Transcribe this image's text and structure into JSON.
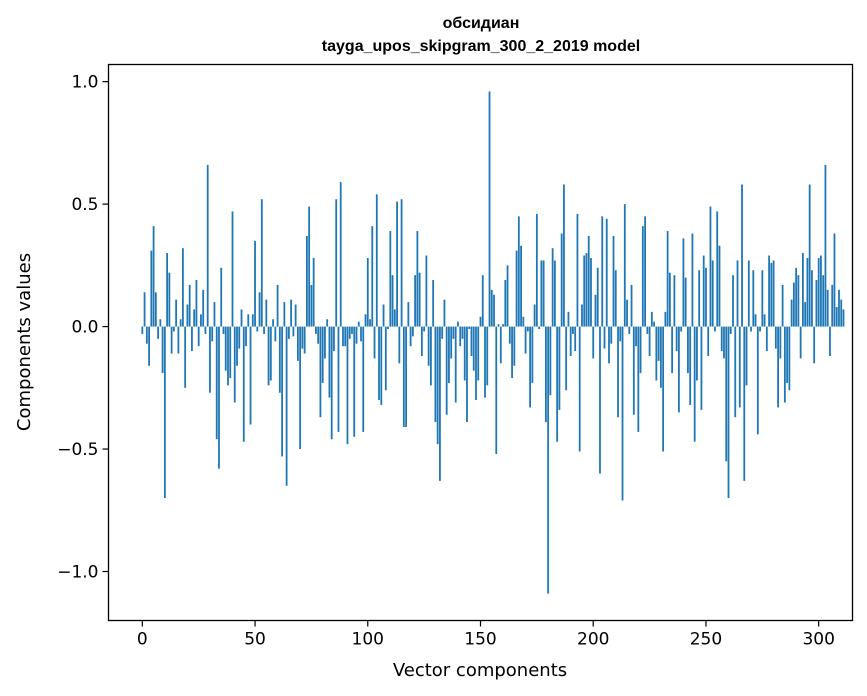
{
  "chart_data": {
    "type": "bar",
    "title_line1": "обсидиан",
    "title_line2": "tayga_upos_skipgram_300_2_2019 model",
    "xlabel": "Vector components",
    "ylabel": "Components values",
    "xlim": [
      -15,
      315
    ],
    "ylim": [
      -1.2,
      1.07
    ],
    "xticks": [
      0,
      50,
      100,
      150,
      200,
      250,
      300
    ],
    "xtick_labels": [
      "0",
      "50",
      "100",
      "150",
      "200",
      "250",
      "300"
    ],
    "yticks": [
      -1.0,
      -0.5,
      0.0,
      0.5,
      1.0
    ],
    "ytick_labels": [
      "−1.0",
      "−0.5",
      "0.0",
      "0.5",
      "1.0"
    ],
    "bar_color": "#1f77b4",
    "grid": false,
    "values": [
      -0.03,
      0.14,
      -0.07,
      -0.16,
      0.31,
      0.41,
      0.14,
      -0.05,
      0.03,
      -0.19,
      -0.7,
      0.3,
      0.22,
      -0.11,
      -0.02,
      0.11,
      -0.11,
      0.03,
      0.32,
      -0.25,
      0.09,
      0.17,
      -0.1,
      0.07,
      0.19,
      -0.08,
      0.05,
      0.15,
      -0.03,
      0.66,
      -0.27,
      -0.06,
      0.1,
      -0.46,
      -0.58,
      0.24,
      -0.03,
      -0.18,
      -0.24,
      -0.21,
      0.47,
      -0.31,
      -0.16,
      -0.09,
      0.07,
      -0.47,
      -0.08,
      0.05,
      -0.4,
      0.05,
      0.35,
      -0.02,
      0.14,
      0.52,
      -0.03,
      0.11,
      -0.24,
      -0.22,
      0.03,
      -0.06,
      0.17,
      -0.27,
      -0.53,
      0.1,
      -0.65,
      -0.05,
      0.11,
      -0.04,
      0.09,
      -0.14,
      -0.5,
      -0.09,
      -0.11,
      0.37,
      0.49,
      0.17,
      0.28,
      -0.03,
      -0.07,
      -0.37,
      -0.23,
      -0.13,
      0.03,
      -0.29,
      -0.46,
      -0.1,
      0.52,
      -0.43,
      0.59,
      -0.08,
      -0.08,
      -0.48,
      -0.05,
      -0.03,
      -0.45,
      -0.07,
      0.02,
      -0.06,
      -0.43,
      0.05,
      0.28,
      0.03,
      0.41,
      -0.13,
      0.54,
      -0.3,
      -0.32,
      0.09,
      -0.26,
      -0.01,
      0.39,
      0.21,
      0.07,
      0.51,
      -0.15,
      0.52,
      -0.41,
      -0.41,
      0.1,
      -0.08,
      -0.04,
      0.21,
      0.39,
      0.22,
      -0.12,
      -0.02,
      0.29,
      -0.16,
      -0.24,
      0.19,
      -0.39,
      -0.48,
      -0.63,
      -0.05,
      0.11,
      -0.36,
      -0.23,
      -0.13,
      -0.05,
      -0.31,
      0.02,
      -0.08,
      -0.05,
      -0.22,
      -0.39,
      -0.01,
      -0.12,
      -0.18,
      -0.3,
      -0.22,
      0.04,
      0.21,
      -0.29,
      -0.24,
      0.96,
      0.15,
      0.13,
      -0.52,
      0.01,
      -0.15,
      0.01,
      0.19,
      0.25,
      -0.07,
      -0.21,
      -0.16,
      0.31,
      0.45,
      0.33,
      0.04,
      -0.11,
      -0.02,
      -0.33,
      -0.23,
      0.09,
      0.46,
      -0.01,
      0.27,
      0.27,
      -0.39,
      -1.09,
      -0.28,
      0.32,
      0.27,
      -0.47,
      -0.34,
      0.38,
      0.58,
      -0.26,
      0.06,
      -0.12,
      -0.03,
      -0.1,
      0.46,
      -0.51,
      0.09,
      0.29,
      0.3,
      0.37,
      0.28,
      -0.13,
      0.13,
      0.24,
      -0.6,
      0.45,
      -0.09,
      0.44,
      -0.15,
      -0.07,
      0.37,
      0.23,
      -0.37,
      -0.06,
      -0.71,
      0.5,
      0.11,
      -0.03,
      0.17,
      -0.36,
      -0.08,
      -0.43,
      -0.19,
      0.41,
      0.45,
      -0.03,
      -0.12,
      0.06,
      0.02,
      -0.22,
      -0.14,
      -0.25,
      -0.51,
      0.06,
      0.39,
      0.22,
      -0.19,
      0.21,
      -0.1,
      -0.35,
      -0.02,
      0.36,
      0.2,
      -0.19,
      -0.32,
      0.38,
      -0.47,
      -0.22,
      0.23,
      -0.34,
      0.29,
      0.24,
      -0.12,
      0.49,
      0.27,
      -0.02,
      0.47,
      0.33,
      -0.1,
      -0.13,
      -0.55,
      -0.7,
      -0.03,
      0.21,
      -0.37,
      0.27,
      -0.33,
      0.58,
      -0.63,
      -0.24,
      0.27,
      -0.02,
      0.23,
      0.05,
      -0.44,
      -0.02,
      0.23,
      0.05,
      -0.1,
      0.29,
      0.26,
      0.27,
      -0.09,
      -0.33,
      -0.13,
      0.17,
      -0.31,
      -0.23,
      -0.26,
      0.11,
      0.18,
      0.24,
      0.21,
      -0.13,
      0.3,
      0.1,
      0.28,
      0.58,
      0.23,
      -0.15,
      0.19,
      0.28,
      0.29,
      0.21,
      0.66,
      0.15,
      -0.12,
      0.17,
      0.38,
      0.08,
      0.15,
      0.11,
      0.07
    ]
  }
}
